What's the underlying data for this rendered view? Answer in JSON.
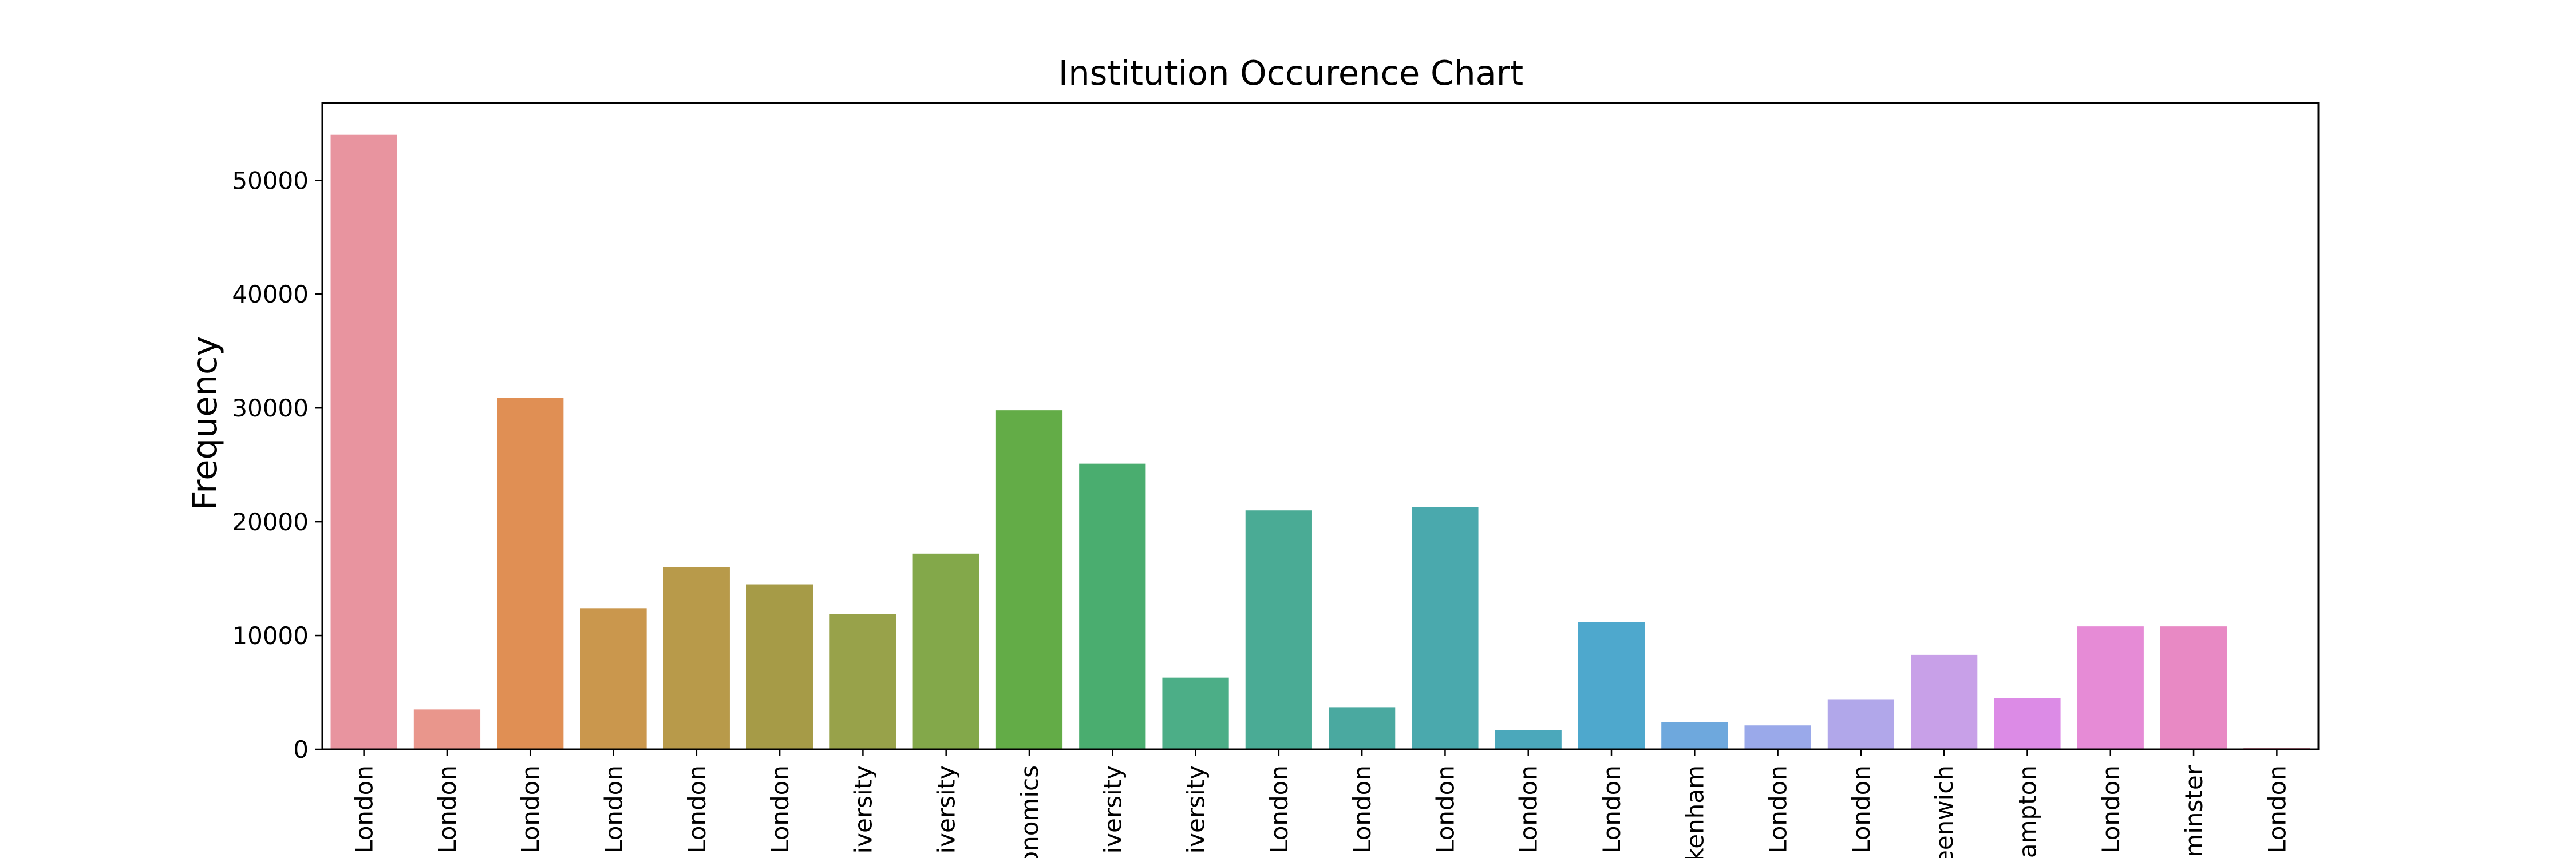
{
  "chart_data": {
    "type": "bar",
    "title": "Institution Occurence Chart",
    "xlabel": "",
    "ylabel": "Frequency",
    "ylim": [
      0,
      56800
    ],
    "yticks": [
      0,
      10000,
      20000,
      30000,
      40000,
      50000
    ],
    "grid": false,
    "categories": [
      "London",
      "London",
      "London",
      "London",
      "London",
      "London",
      "iversity",
      "iversity",
      "onomics",
      "iversity",
      "iversity",
      "London",
      "London",
      "London",
      "London",
      "London",
      "kenham",
      "London",
      "London",
      "eenwich",
      "ampton",
      "London",
      "minster",
      "London"
    ],
    "values": [
      54000,
      3500,
      30900,
      12400,
      16000,
      14500,
      11900,
      17200,
      29800,
      25100,
      6300,
      21000,
      3700,
      21300,
      1700,
      11200,
      2400,
      2100,
      4400,
      8300,
      4500,
      10800,
      10800,
      100
    ],
    "colors": [
      "#e8949f",
      "#e9968c",
      "#e08f54",
      "#ca974d",
      "#b89a4a",
      "#a69b47",
      "#98a24a",
      "#83a84a",
      "#63ac47",
      "#4aad6f",
      "#4cae87",
      "#4aab95",
      "#4aa9a0",
      "#4aa9ad",
      "#4ba8bb",
      "#4ea8cd",
      "#6ea8dd",
      "#9aa9ea",
      "#b1a7ea",
      "#c8a0e8",
      "#dc8be6",
      "#e68bd6",
      "#e889c4",
      "#e994a8"
    ]
  }
}
